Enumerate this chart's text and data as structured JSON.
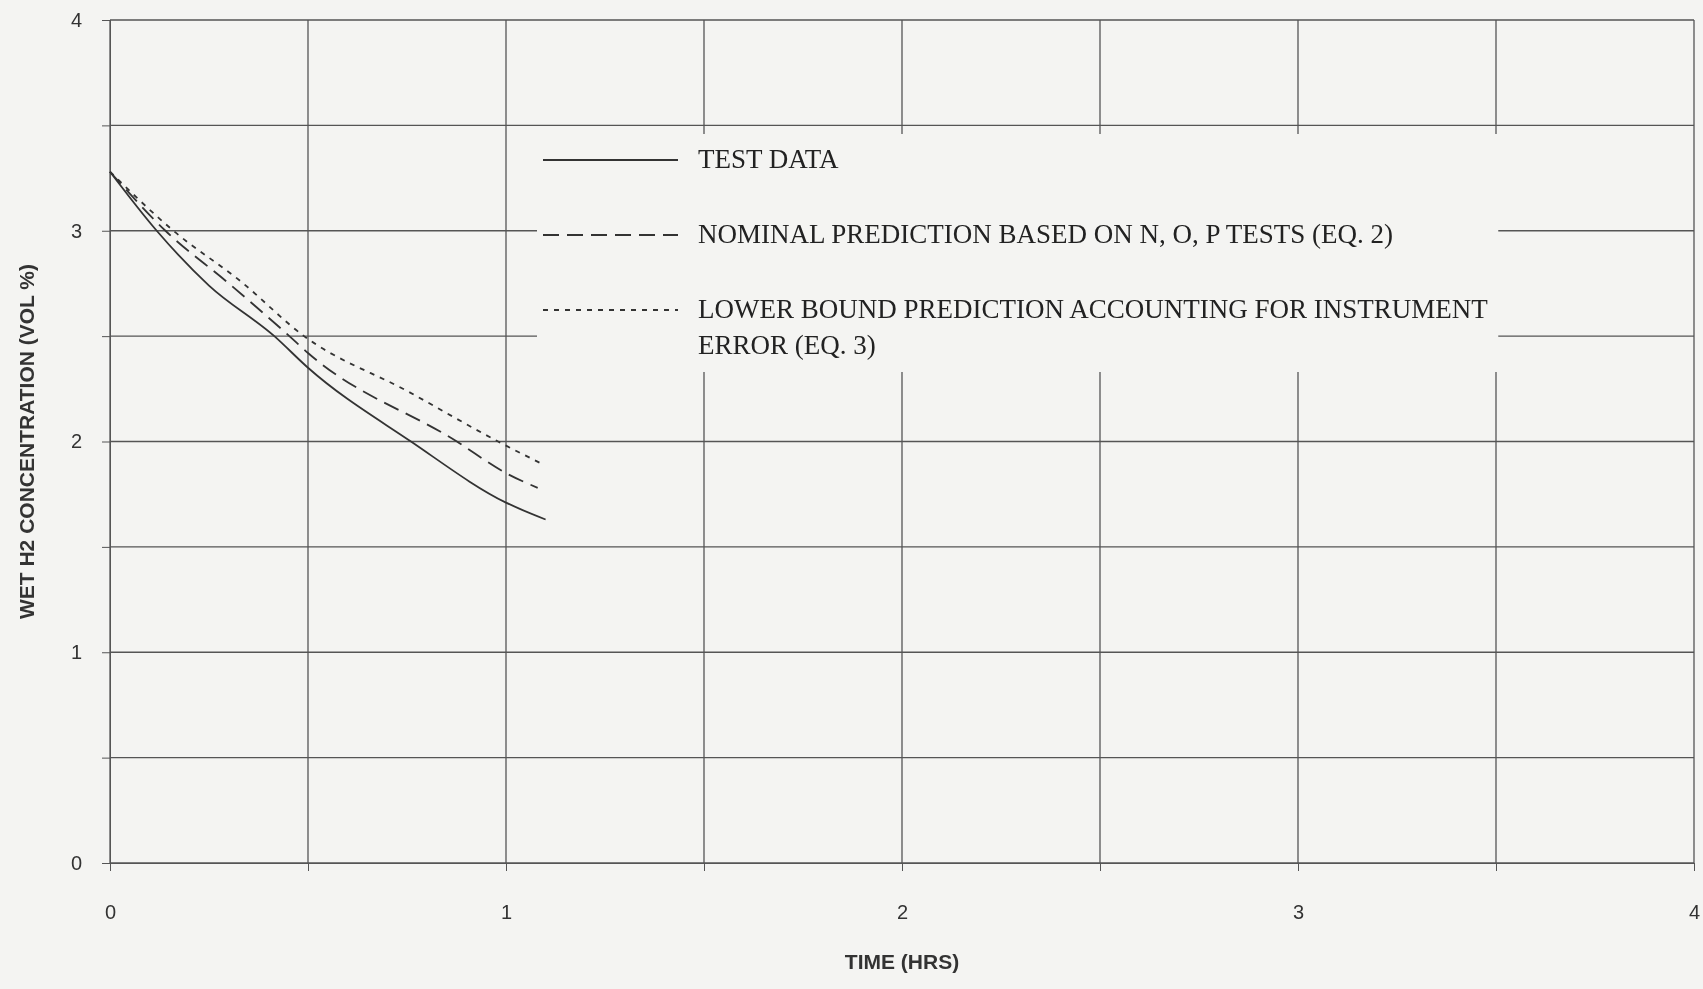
{
  "chart_data": {
    "type": "line",
    "xlabel": "TIME (HRS)",
    "ylabel": "WET H2 CONCENTRATION (VOL %)",
    "xlim": [
      0,
      4
    ],
    "ylim": [
      0,
      4
    ],
    "xticks": [
      0,
      {
        "value": 0.5,
        "label": null
      },
      1,
      {
        "value": 1.5,
        "label": null
      },
      2,
      {
        "value": 2.5,
        "label": null
      },
      3,
      {
        "value": 3.5,
        "label": null
      },
      4
    ],
    "yticks": [
      0,
      {
        "value": 0.5,
        "label": null
      },
      1,
      {
        "value": 1.5,
        "label": null
      },
      2,
      {
        "value": 2.5,
        "label": null
      },
      3,
      {
        "value": 3.5,
        "label": null
      },
      4
    ],
    "grid": true,
    "legend": "top",
    "marker": "none",
    "series": [
      {
        "name": "TEST DATA",
        "color": "#333333",
        "line_style": "solid",
        "x": [
          0,
          0.118,
          0.25,
          0.415,
          0.5,
          0.76,
          1,
          1.1
        ],
        "values": [
          3.28,
          3,
          2.74,
          2.5,
          2.35,
          2,
          1.71,
          1.63
        ]
      },
      {
        "name": "NOMINAL PREDICTION BASED ON N, O, P TESTS (EQ. 2)",
        "color": "#333333",
        "line_style": "dashed",
        "x": [
          0,
          0.14,
          0.3,
          0.453,
          0.5,
          0.876,
          1,
          1.08
        ],
        "values": [
          3.28,
          3,
          2.75,
          2.5,
          2.42,
          2,
          1.85,
          1.78
        ]
      },
      {
        "name": "LOWER BOUND PREDICTION ACCOUNTING FOR INSTRUMENT ERROR (EQ. 3)",
        "color": "#333333",
        "line_style": "dotted",
        "x": [
          0,
          0.16,
          0.33,
          0.49,
          0.75,
          0.98,
          1.095
        ],
        "values": [
          3.28,
          3,
          2.76,
          2.5,
          2.24,
          2,
          1.89
        ]
      }
    ]
  }
}
